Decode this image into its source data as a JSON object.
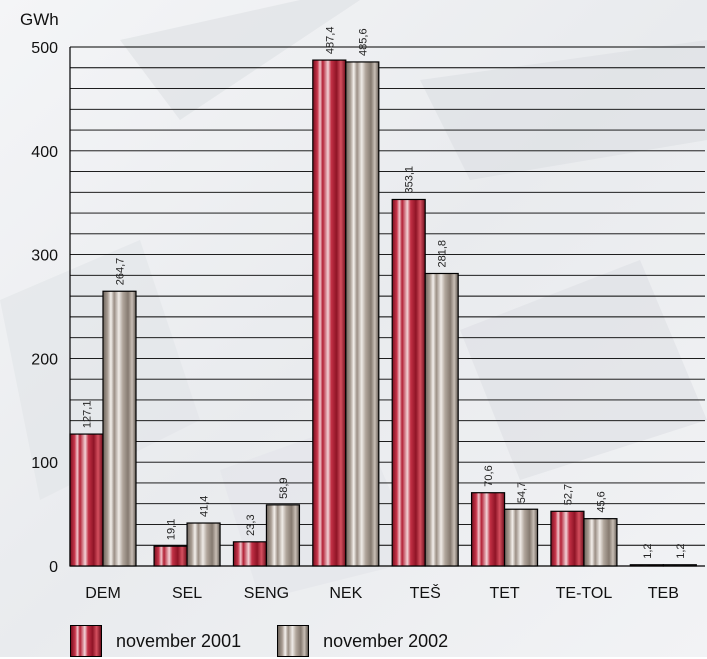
{
  "chart_data": {
    "type": "bar",
    "ylabel": "GWh",
    "ylim": [
      0,
      500
    ],
    "yticks": [
      0,
      100,
      200,
      300,
      400,
      500
    ],
    "grid": true,
    "categories": [
      "DEM",
      "SEL",
      "SENG",
      "NEK",
      "TEŠ",
      "TET",
      "TE-TOL",
      "TEB"
    ],
    "series": [
      {
        "name": "november 2001",
        "values": [
          127.1,
          19.1,
          23.3,
          487.4,
          353.1,
          70.6,
          52.7,
          1.2
        ],
        "labels": [
          "127,1",
          "19,1",
          "23,3",
          "487,4",
          "353,1",
          "70,6",
          "52,7",
          "1,2"
        ],
        "color": "#b8263a"
      },
      {
        "name": "november 2002",
        "values": [
          264.7,
          41.4,
          58.9,
          485.6,
          281.8,
          54.7,
          45.6,
          1.2
        ],
        "labels": [
          "264,7",
          "41,4",
          "58,9",
          "485,6",
          "281,8",
          "54,7",
          "45,6",
          "1,2"
        ],
        "color": "#a89c92"
      }
    ],
    "legend_placement": "bottom-left"
  }
}
